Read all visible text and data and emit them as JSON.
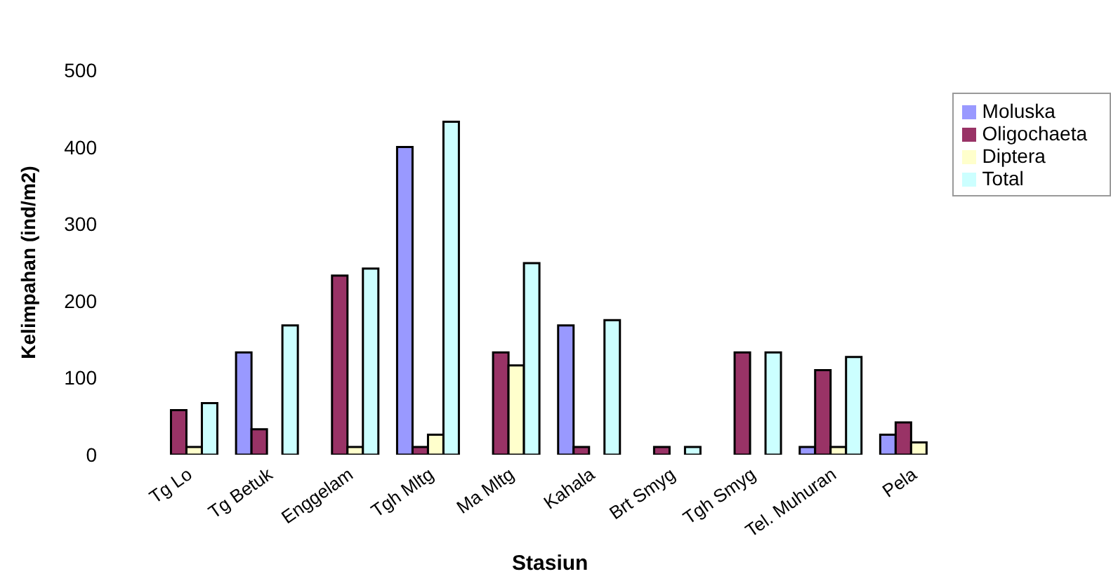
{
  "chart_data": {
    "type": "bar",
    "xlabel": "Stasiun",
    "ylabel": "Kelimpahan (ind/m2)",
    "categories": [
      "Tg Lo",
      "Tg Betuk",
      "Enggelam",
      "Tgh  Mltg",
      "Ma Mltg",
      "Kahala",
      "Brt Smyg",
      "Tgh Smyg",
      "Tel. Muhuran",
      "Pela"
    ],
    "series": [
      {
        "name": "Moluska",
        "color": "#9999ff",
        "values": [
          0,
          133,
          0,
          400,
          0,
          168,
          0,
          0,
          10,
          26
        ]
      },
      {
        "name": "Oligochaeta",
        "color": "#993366",
        "values": [
          58,
          33,
          233,
          10,
          133,
          10,
          10,
          133,
          110,
          42
        ]
      },
      {
        "name": "Diptera",
        "color": "#ffffcc",
        "values": [
          10,
          0,
          10,
          26,
          116,
          0,
          0,
          0,
          10,
          16
        ]
      },
      {
        "name": "Total",
        "color": "#ccffff",
        "values": [
          67,
          168,
          242,
          433,
          249,
          175,
          10,
          133,
          127,
          null
        ]
      }
    ],
    "ylim": [
      0,
      500
    ],
    "yticks": [
      0,
      100,
      200,
      300,
      400,
      500
    ],
    "grid": false,
    "legend": "top right"
  }
}
